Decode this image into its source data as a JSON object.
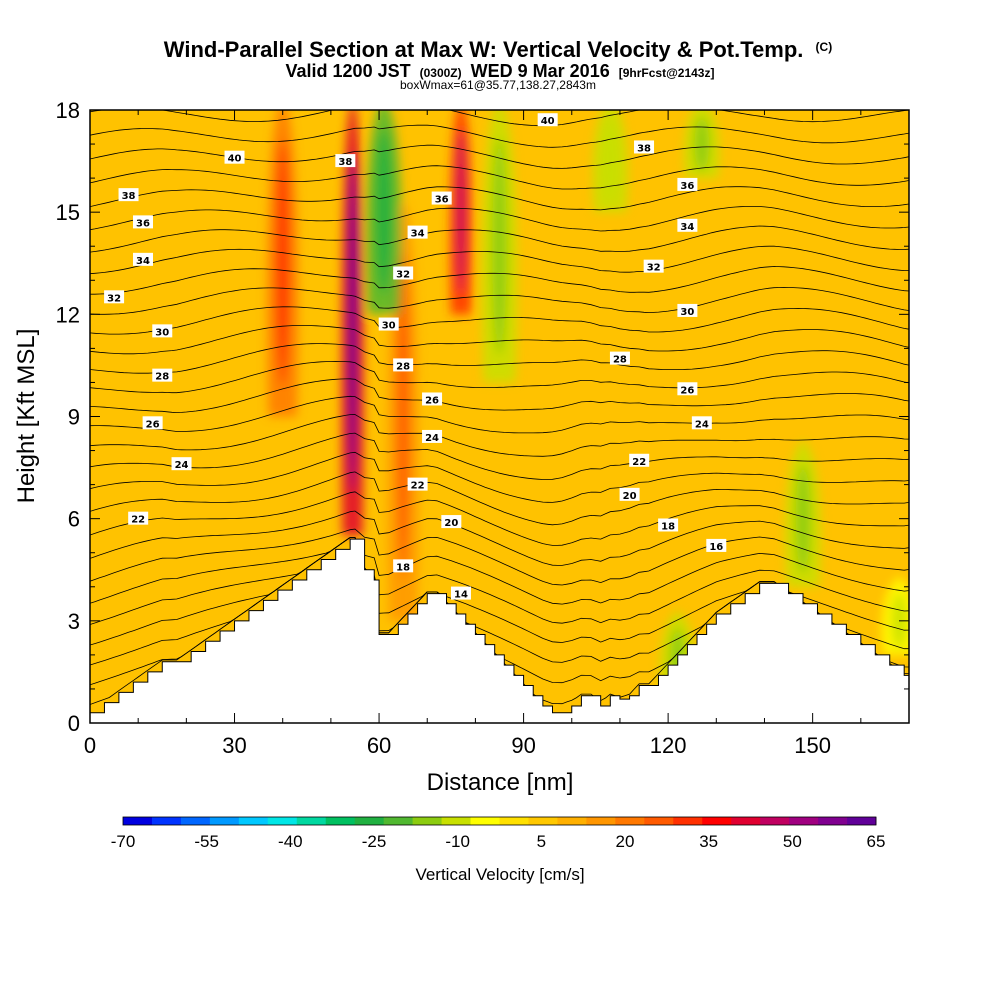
{
  "chart_data": {
    "type": "heatmap",
    "title": "Wind-Parallel Section at Max W: Vertical Velocity & Pot.Temp.",
    "title_mark": "(C)",
    "subtitle": {
      "valid": "Valid 1200 JST",
      "utc": "(0300Z)",
      "date": "WED 9 Mar 2016",
      "fcst": "[9hrFcst@2143z]"
    },
    "subtitle2": "boxWmax=61@35.77,138.27,2843m",
    "xlabel": "Distance [nm]",
    "ylabel": "Height [Kft MSL]",
    "xlim": [
      0,
      170
    ],
    "ylim": [
      0,
      18
    ],
    "x_ticks": [
      0,
      30,
      60,
      90,
      120,
      150
    ],
    "y_ticks": [
      0,
      3,
      6,
      9,
      12,
      15,
      18
    ],
    "colorbar": {
      "label": "Vertical Velocity [cm/s]",
      "range": [
        -70,
        65
      ],
      "tick_labels": [
        "-70",
        "-55",
        "-40",
        "-25",
        "-10",
        "5",
        "20",
        "35",
        "50",
        "65"
      ],
      "colors": [
        "#0000e0",
        "#0033ff",
        "#0066ff",
        "#0099ff",
        "#00c8ff",
        "#00e6e6",
        "#00d8a0",
        "#00c060",
        "#20b040",
        "#50b830",
        "#8ccc10",
        "#c8e000",
        "#ffff00",
        "#ffe000",
        "#ffc800",
        "#ffb000",
        "#ff9600",
        "#ff7800",
        "#ff5a00",
        "#ff3000",
        "#ff0000",
        "#e00030",
        "#c00060",
        "#a00080",
        "#800090",
        "#600098"
      ]
    },
    "vertical_velocity_features": [
      {
        "x": 54.5,
        "y_from": 5.5,
        "y_to": 18,
        "w_max": 61,
        "kind": "updraft"
      },
      {
        "x": 77,
        "y_from": 12,
        "y_to": 18,
        "w_max": 45,
        "kind": "updraft"
      },
      {
        "x": 65,
        "y_from": 3,
        "y_to": 15,
        "w_max": 25,
        "kind": "updraft"
      },
      {
        "x": 40,
        "y_from": 9,
        "y_to": 18,
        "w_max": 30,
        "kind": "updraft"
      },
      {
        "x": 61,
        "y_from": 12,
        "y_to": 18,
        "w_max": -28,
        "kind": "downdraft"
      },
      {
        "x": 85,
        "y_from": 10,
        "y_to": 18,
        "w_max": -15,
        "kind": "downdraft"
      },
      {
        "x": 108,
        "y_from": 15,
        "y_to": 18,
        "w_max": -12,
        "kind": "downdraft"
      },
      {
        "x": 127,
        "y_from": 16,
        "y_to": 18,
        "w_max": -18,
        "kind": "downdraft"
      },
      {
        "x": 148,
        "y_from": 4,
        "y_to": 8,
        "w_max": -15,
        "kind": "downdraft"
      },
      {
        "x": 122,
        "y_from": 0.7,
        "y_to": 3,
        "w_max": -15,
        "kind": "downdraft"
      },
      {
        "x": 168,
        "y_from": 2,
        "y_to": 4,
        "w_max": -10,
        "kind": "downdraft"
      }
    ],
    "terrain_profile": {
      "x": [
        0,
        3,
        6,
        9,
        12,
        15,
        18,
        21,
        24,
        27,
        30,
        33,
        36,
        39,
        42,
        45,
        48,
        51,
        54,
        55,
        57,
        59,
        60,
        62,
        64,
        66,
        68,
        70,
        72,
        74,
        76,
        78,
        80,
        82,
        84,
        86,
        88,
        90,
        92,
        94,
        96,
        98,
        100,
        102,
        104,
        106,
        108,
        110,
        112,
        114,
        116,
        118,
        120,
        122,
        124,
        126,
        128,
        130,
        133,
        136,
        139,
        142,
        145,
        148,
        151,
        154,
        157,
        160,
        163,
        166,
        169,
        170
      ],
      "height": [
        0.3,
        0.6,
        0.9,
        1.2,
        1.5,
        1.8,
        1.8,
        2.1,
        2.4,
        2.7,
        3.0,
        3.3,
        3.6,
        3.9,
        4.2,
        4.5,
        4.8,
        5.1,
        5.4,
        5.4,
        4.5,
        4.2,
        2.6,
        2.6,
        2.9,
        3.2,
        3.5,
        3.8,
        3.8,
        3.5,
        3.2,
        2.9,
        2.6,
        2.3,
        2.0,
        1.7,
        1.4,
        1.1,
        0.8,
        0.5,
        0.3,
        0.3,
        0.5,
        0.8,
        0.8,
        0.5,
        0.8,
        0.7,
        0.8,
        1.1,
        1.1,
        1.4,
        1.7,
        2.0,
        2.3,
        2.6,
        2.9,
        3.2,
        3.5,
        3.8,
        4.1,
        4.1,
        3.8,
        3.5,
        3.2,
        2.9,
        2.6,
        2.3,
        2.0,
        1.7,
        1.4,
        1.4
      ]
    },
    "pot_temp_isentropes": {
      "min": 12,
      "max": 41,
      "interval": 1
    },
    "pot_temp_labels": [
      {
        "x": 30,
        "y": 16.6,
        "value": "40"
      },
      {
        "x": 95,
        "y": 17.7,
        "value": "40"
      },
      {
        "x": 53,
        "y": 16.5,
        "value": "38"
      },
      {
        "x": 115,
        "y": 16.9,
        "value": "38"
      },
      {
        "x": 8,
        "y": 15.5,
        "value": "38"
      },
      {
        "x": 73,
        "y": 15.4,
        "value": "36"
      },
      {
        "x": 124,
        "y": 15.8,
        "value": "36"
      },
      {
        "x": 11,
        "y": 14.7,
        "value": "36"
      },
      {
        "x": 68,
        "y": 14.4,
        "value": "34"
      },
      {
        "x": 124,
        "y": 14.6,
        "value": "34"
      },
      {
        "x": 11,
        "y": 13.6,
        "value": "34"
      },
      {
        "x": 65,
        "y": 13.2,
        "value": "32"
      },
      {
        "x": 117,
        "y": 13.4,
        "value": "32"
      },
      {
        "x": 5,
        "y": 12.5,
        "value": "32"
      },
      {
        "x": 62,
        "y": 11.7,
        "value": "30"
      },
      {
        "x": 124,
        "y": 12.1,
        "value": "30"
      },
      {
        "x": 15,
        "y": 11.5,
        "value": "30"
      },
      {
        "x": 65,
        "y": 10.5,
        "value": "28"
      },
      {
        "x": 110,
        "y": 10.7,
        "value": "28"
      },
      {
        "x": 15,
        "y": 10.2,
        "value": "28"
      },
      {
        "x": 71,
        "y": 9.5,
        "value": "26"
      },
      {
        "x": 124,
        "y": 9.8,
        "value": "26"
      },
      {
        "x": 13,
        "y": 8.8,
        "value": "26"
      },
      {
        "x": 71,
        "y": 8.4,
        "value": "24"
      },
      {
        "x": 127,
        "y": 8.8,
        "value": "24"
      },
      {
        "x": 19,
        "y": 7.6,
        "value": "24"
      },
      {
        "x": 68,
        "y": 7.0,
        "value": "22"
      },
      {
        "x": 114,
        "y": 7.7,
        "value": "22"
      },
      {
        "x": 10,
        "y": 6.0,
        "value": "22"
      },
      {
        "x": 75,
        "y": 5.9,
        "value": "20"
      },
      {
        "x": 112,
        "y": 6.7,
        "value": "20"
      },
      {
        "x": 120,
        "y": 5.8,
        "value": "18"
      },
      {
        "x": 65,
        "y": 4.6,
        "value": "18"
      },
      {
        "x": 130,
        "y": 5.2,
        "value": "16"
      },
      {
        "x": 77,
        "y": 3.8,
        "value": "14"
      }
    ],
    "grid": false
  }
}
